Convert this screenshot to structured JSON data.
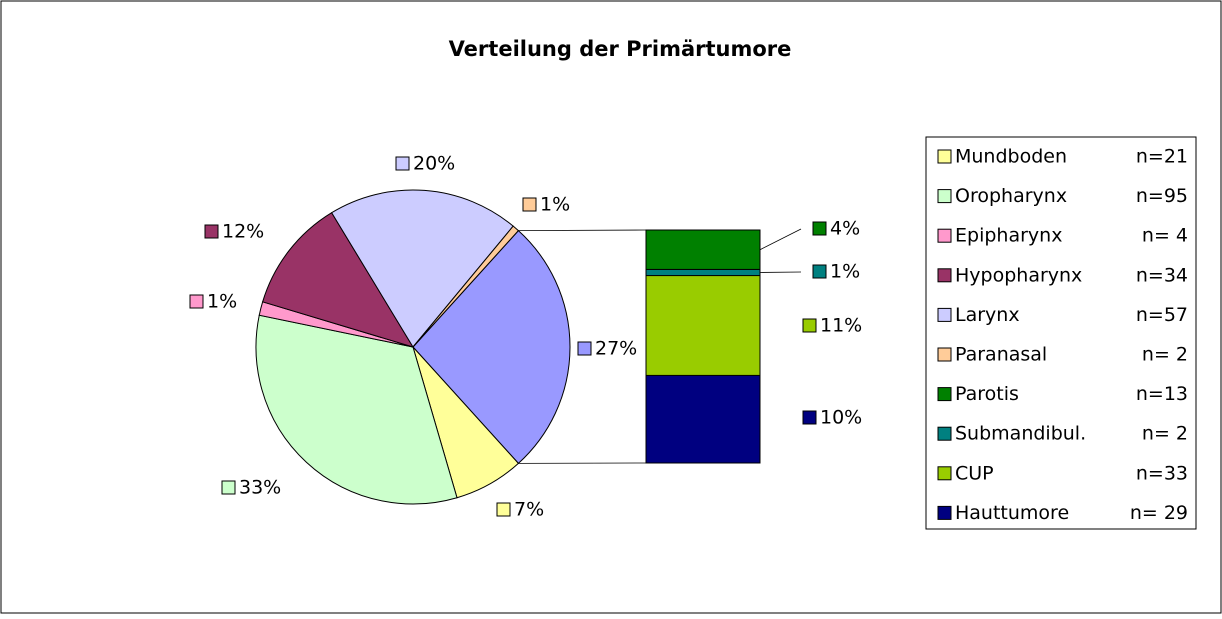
{
  "chart_data": {
    "type": "bar-of-pie",
    "title": "Verteilung der Primärtumore",
    "series": [
      {
        "name": "Mundboden",
        "count_label": "n=21",
        "color": "#ffff99",
        "values": [
          7.2
        ],
        "value_labels": [
          "7%"
        ],
        "group": "pie"
      },
      {
        "name": "Oropharynx",
        "count_label": "n=95",
        "color": "#ccffcc",
        "values": [
          32.8
        ],
        "value_labels": [
          "33%"
        ],
        "group": "pie"
      },
      {
        "name": "Epipharynx",
        "count_label": "n= 4",
        "color": "#ff99cc",
        "values": [
          1.4
        ],
        "value_labels": [
          "1%"
        ],
        "group": "pie"
      },
      {
        "name": "Hypopharynx",
        "count_label": "n=34",
        "color": "#993366",
        "values": [
          11.7
        ],
        "value_labels": [
          "12%"
        ],
        "group": "pie"
      },
      {
        "name": "Larynx",
        "count_label": "n=57",
        "color": "#ccccff",
        "values": [
          19.7
        ],
        "value_labels": [
          "20%"
        ],
        "group": "pie"
      },
      {
        "name": "Paranasal",
        "count_label": "n= 2",
        "color": "#ffcc99",
        "values": [
          0.7
        ],
        "value_labels": [
          "1%"
        ],
        "group": "pie"
      },
      {
        "name": "Parotis",
        "count_label": "n=13",
        "color": "#008000",
        "values": [
          4.5
        ],
        "value_labels": [
          "4%"
        ],
        "group": "bar"
      },
      {
        "name": "Submandibul.",
        "count_label": "n= 2",
        "color": "#008080",
        "values": [
          0.7
        ],
        "value_labels": [
          "1%"
        ],
        "group": "bar"
      },
      {
        "name": "CUP",
        "count_label": "n=33",
        "color": "#99cc00",
        "values": [
          11.4
        ],
        "value_labels": [
          "11%"
        ],
        "group": "bar"
      },
      {
        "name": "Hauttumore",
        "count_label": "n= 29",
        "color": "#000080",
        "values": [
          10.0
        ],
        "value_labels": [
          "10%"
        ],
        "group": "bar"
      }
    ],
    "other": {
      "color": "#9999ff",
      "value": 26.6,
      "value_label": "27%"
    }
  }
}
